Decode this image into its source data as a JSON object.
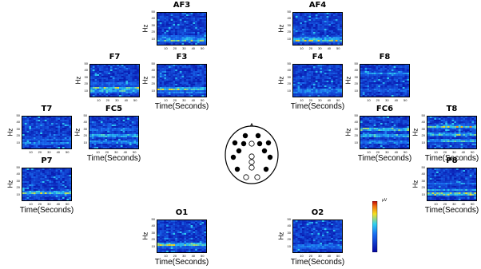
{
  "colors": {
    "low": "#0505a0",
    "mid": "#2fd0f0",
    "high": "#f5e020",
    "peak": "#d01010"
  },
  "colorbar": {
    "unit": "µV"
  },
  "scalp_map": {
    "electrodes_filled": [
      "AF3",
      "AF4",
      "F7",
      "F8",
      "F3",
      "F4",
      "FC5",
      "FC6",
      "T7",
      "T8",
      "P7",
      "P8"
    ],
    "electrodes_empty": [
      "O1",
      "O2",
      "Fz",
      "Cz",
      "Pz",
      "CPz"
    ]
  },
  "chart_data": [
    {
      "type": "heatmap",
      "title": "AF3",
      "ylabel": "Hz",
      "xlabel": "",
      "yticks": [
        "50",
        "40",
        "30",
        "20",
        "10"
      ],
      "xticks": [
        "10",
        "20",
        "30",
        "40",
        "50"
      ],
      "xlim": [
        0,
        55
      ],
      "ylim": [
        0,
        50
      ],
      "hot_bands": [
        {
          "y": 7,
          "intensity": 0.8
        },
        {
          "y": 12,
          "intensity": 0.55
        }
      ]
    },
    {
      "type": "heatmap",
      "title": "AF4",
      "ylabel": "Hz",
      "xlabel": "",
      "yticks": [
        "50",
        "40",
        "30",
        "20",
        "10"
      ],
      "xticks": [
        "10",
        "20",
        "30",
        "40",
        "50"
      ],
      "xlim": [
        0,
        55
      ],
      "ylim": [
        0,
        50
      ],
      "hot_bands": [
        {
          "y": 7,
          "intensity": 0.9
        },
        {
          "y": 11,
          "intensity": 0.5
        }
      ]
    },
    {
      "type": "heatmap",
      "title": "F7",
      "ylabel": "Hz",
      "xlabel": "",
      "yticks": [
        "50",
        "40",
        "30",
        "20",
        "10"
      ],
      "xticks": [
        "10",
        "20",
        "30",
        "40",
        "50"
      ],
      "xlim": [
        0,
        55
      ],
      "ylim": [
        0,
        50
      ],
      "hot_bands": [
        {
          "y": 13,
          "intensity": 0.85
        },
        {
          "y": 8,
          "intensity": 0.7
        },
        {
          "y": 20,
          "intensity": 0.5
        }
      ]
    },
    {
      "type": "heatmap",
      "title": "F3",
      "ylabel": "Hz",
      "xlabel": "Time(Seconds)",
      "yticks": [
        "50",
        "40",
        "30",
        "20",
        "10"
      ],
      "xticks": [
        "10",
        "20",
        "30",
        "40",
        "50"
      ],
      "xlim": [
        0,
        55
      ],
      "ylim": [
        0,
        50
      ],
      "hot_bands": [
        {
          "y": 12,
          "intensity": 0.85
        },
        {
          "y": 7,
          "intensity": 0.55
        }
      ]
    },
    {
      "type": "heatmap",
      "title": "F4",
      "ylabel": "Hz",
      "xlabel": "Time(Seconds)",
      "yticks": [
        "50",
        "40",
        "30",
        "20",
        "10"
      ],
      "xticks": [
        "10",
        "20",
        "30",
        "40",
        "50"
      ],
      "xlim": [
        0,
        55
      ],
      "ylim": [
        0,
        50
      ],
      "hot_bands": [
        {
          "y": 10,
          "intensity": 0.6
        },
        {
          "y": 6,
          "intensity": 0.45
        }
      ]
    },
    {
      "type": "heatmap",
      "title": "F8",
      "ylabel": "Hz",
      "xlabel": "",
      "yticks": [
        "50",
        "40",
        "30",
        "20",
        "10"
      ],
      "xticks": [
        "10",
        "20",
        "30",
        "40",
        "50"
      ],
      "xlim": [
        0,
        55
      ],
      "ylim": [
        0,
        50
      ],
      "hot_bands": [
        {
          "y": 36,
          "intensity": 0.55
        },
        {
          "y": 10,
          "intensity": 0.5
        }
      ]
    },
    {
      "type": "heatmap",
      "title": "T7",
      "ylabel": "Hz",
      "xlabel": "",
      "yticks": [
        "50",
        "40",
        "30",
        "20",
        "10"
      ],
      "xticks": [
        "10",
        "20",
        "30",
        "40",
        "50"
      ],
      "xlim": [
        0,
        55
      ],
      "ylim": [
        0,
        50
      ],
      "hot_bands": [
        {
          "y": 8,
          "intensity": 0.55
        },
        {
          "y": 14,
          "intensity": 0.4
        }
      ]
    },
    {
      "type": "heatmap",
      "title": "FC5",
      "ylabel": "Hz",
      "xlabel": "Time(Seconds)",
      "yticks": [
        "50",
        "40",
        "30",
        "20",
        "10"
      ],
      "xticks": [
        "10",
        "20",
        "30",
        "40",
        "50"
      ],
      "xlim": [
        0,
        55
      ],
      "ylim": [
        0,
        50
      ],
      "hot_bands": [
        {
          "y": 20,
          "intensity": 0.75
        },
        {
          "y": 10,
          "intensity": 0.65
        },
        {
          "y": 30,
          "intensity": 0.5
        }
      ]
    },
    {
      "type": "heatmap",
      "title": "FC6",
      "ylabel": "Hz",
      "xlabel": "Time(Seconds)",
      "yticks": [
        "50",
        "40",
        "30",
        "20",
        "10"
      ],
      "xticks": [
        "10",
        "20",
        "30",
        "40",
        "50"
      ],
      "xlim": [
        0,
        55
      ],
      "ylim": [
        0,
        50
      ],
      "hot_bands": [
        {
          "y": 30,
          "intensity": 0.85
        },
        {
          "y": 20,
          "intensity": 0.8
        },
        {
          "y": 10,
          "intensity": 0.6
        }
      ]
    },
    {
      "type": "heatmap",
      "title": "T8",
      "ylabel": "Hz",
      "xlabel": "Time(Seconds)",
      "yticks": [
        "50",
        "40",
        "30",
        "20",
        "10"
      ],
      "xticks": [
        "10",
        "20",
        "30",
        "40",
        "50"
      ],
      "xlim": [
        0,
        55
      ],
      "ylim": [
        0,
        50
      ],
      "hot_bands": [
        {
          "y": 34,
          "intensity": 0.9
        },
        {
          "y": 22,
          "intensity": 0.8
        },
        {
          "y": 12,
          "intensity": 0.7
        }
      ]
    },
    {
      "type": "heatmap",
      "title": "P7",
      "ylabel": "Hz",
      "xlabel": "Time(Seconds)",
      "yticks": [
        "50",
        "40",
        "30",
        "20",
        "10"
      ],
      "xticks": [
        "10",
        "20",
        "30",
        "40",
        "50"
      ],
      "xlim": [
        0,
        55
      ],
      "ylim": [
        0,
        50
      ],
      "hot_bands": [
        {
          "y": 12,
          "intensity": 0.85
        },
        {
          "y": 8,
          "intensity": 0.45
        }
      ]
    },
    {
      "type": "heatmap",
      "title": "P8",
      "ylabel": "Hz",
      "xlabel": "Time(Seconds)",
      "yticks": [
        "50",
        "40",
        "30",
        "20",
        "10"
      ],
      "xticks": [
        "10",
        "20",
        "30",
        "40",
        "50"
      ],
      "xlim": [
        0,
        55
      ],
      "ylim": [
        0,
        50
      ],
      "hot_bands": [
        {
          "y": 10,
          "intensity": 0.95
        },
        {
          "y": 16,
          "intensity": 0.6
        },
        {
          "y": 26,
          "intensity": 0.45
        }
      ]
    },
    {
      "type": "heatmap",
      "title": "O1",
      "ylabel": "Hz",
      "xlabel": "Time(Seconds)",
      "yticks": [
        "50",
        "40",
        "30",
        "20",
        "10"
      ],
      "xticks": [
        "10",
        "20",
        "30",
        "40",
        "50"
      ],
      "xlim": [
        0,
        55
      ],
      "ylim": [
        0,
        50
      ],
      "hot_bands": [
        {
          "y": 12,
          "intensity": 0.95
        },
        {
          "y": 8,
          "intensity": 0.5
        }
      ]
    },
    {
      "type": "heatmap",
      "title": "O2",
      "ylabel": "Hz",
      "xlabel": "Time(Seconds)",
      "yticks": [
        "50",
        "40",
        "30",
        "20",
        "10"
      ],
      "xticks": [
        "10",
        "20",
        "30",
        "40",
        "50"
      ],
      "xlim": [
        0,
        55
      ],
      "ylim": [
        0,
        50
      ],
      "hot_bands": [
        {
          "y": 10,
          "intensity": 0.55
        },
        {
          "y": 6,
          "intensity": 0.4
        }
      ]
    }
  ]
}
